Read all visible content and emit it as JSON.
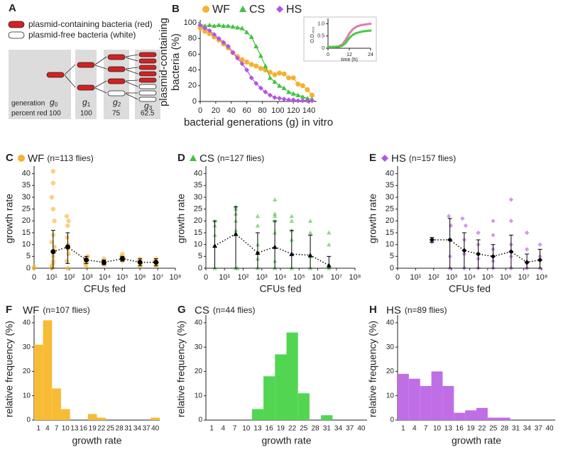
{
  "panel_a": {
    "label": "A",
    "legend": [
      "plasmid-containing bacteria (red)",
      "plasmid-free bacteria (white)"
    ],
    "row_labels": [
      "generation",
      "percent red"
    ],
    "generations": [
      {
        "symbol": "g",
        "sub": "0",
        "percent": 100
      },
      {
        "symbol": "g",
        "sub": "1",
        "percent": 100
      },
      {
        "symbol": "g",
        "sub": "2",
        "percent": 75
      },
      {
        "symbol": "g",
        "sub": "3",
        "percent": 62.5
      }
    ]
  },
  "chart_data": [
    {
      "type": "line",
      "label": "B",
      "markers": true,
      "xlabel": "bacterial generations (g) in vitro",
      "ylabel": [
        "plasmid-containing",
        "bacteria (%)"
      ],
      "xlim": [
        0,
        150
      ],
      "xticks": [
        0,
        20,
        40,
        60,
        80,
        100,
        120,
        140
      ],
      "ylim": [
        0,
        100
      ],
      "yticks": [
        0,
        20,
        40,
        60,
        80,
        100
      ],
      "x": [
        0,
        6,
        12,
        18,
        24,
        30,
        36,
        42,
        48,
        54,
        60,
        66,
        72,
        78,
        84,
        90,
        96,
        102,
        108,
        114,
        120,
        126,
        132,
        138,
        144
      ],
      "series": [
        {
          "name": "WF",
          "color": "#f6b12f",
          "marker": "circle",
          "values": [
            93,
            89,
            86,
            82,
            78,
            73,
            68,
            62,
            57,
            53,
            50,
            47,
            45,
            42,
            40,
            37,
            34,
            36,
            35,
            30,
            30,
            22,
            20,
            15,
            8
          ]
        },
        {
          "name": "CS",
          "color": "#3fc23f",
          "marker": "triangle",
          "values": [
            98,
            96,
            97,
            96,
            97,
            96,
            96,
            95,
            94,
            93,
            88,
            82,
            70,
            58,
            45,
            30,
            25,
            20,
            17,
            12,
            10,
            8,
            6,
            4,
            3
          ]
        },
        {
          "name": "HS",
          "color": "#b455e0",
          "marker": "diamond",
          "values": [
            97,
            93,
            90,
            85,
            80,
            75,
            70,
            62,
            55,
            48,
            40,
            30,
            23,
            17,
            12,
            8,
            5,
            4,
            3,
            2,
            2,
            1,
            1,
            1,
            1
          ]
        }
      ]
    },
    {
      "type": "line",
      "xlabel": "time (h)",
      "ylabel": "O.D.₆₀₀",
      "xlim": [
        0,
        24
      ],
      "xticks": [
        0,
        12,
        24
      ],
      "ylim": [
        0,
        1.1
      ],
      "yticks": [
        0,
        0.5,
        {
          "value": 1,
          "label": "1.0"
        }
      ],
      "x": [
        0,
        2,
        4,
        6,
        8,
        10,
        12,
        14,
        16,
        18,
        20,
        22,
        24
      ],
      "series": [
        {
          "color": "#e07ab0",
          "values": [
            0.05,
            0.05,
            0.06,
            0.08,
            0.15,
            0.35,
            0.6,
            0.78,
            0.88,
            0.93,
            0.96,
            0.98,
            1.0
          ]
        },
        {
          "color": "#44cc44",
          "values": [
            0.05,
            0.05,
            0.05,
            0.06,
            0.1,
            0.22,
            0.42,
            0.55,
            0.62,
            0.66,
            0.69,
            0.71,
            0.72
          ]
        }
      ]
    },
    {
      "type": "scatter",
      "label": "C",
      "note": "(n=113 flies)",
      "xlabel": "CFUs fed",
      "ylabel": "growth rate",
      "log_x": true,
      "xlim": [
        1,
        100000000
      ],
      "xticks": [
        {
          "value": 1,
          "label": "0"
        },
        {
          "value": 10,
          "label": "10¹"
        },
        {
          "value": 100,
          "label": "10²"
        },
        {
          "value": 1000,
          "label": "10³"
        },
        {
          "value": 10000,
          "label": "10⁴"
        },
        {
          "value": 100000,
          "label": "10⁵"
        },
        {
          "value": 1000000,
          "label": "10⁶"
        },
        {
          "value": 10000000,
          "label": "10⁷"
        },
        {
          "value": 100000000,
          "label": "10⁸"
        }
      ],
      "ylim": [
        0,
        42
      ],
      "yticks": [
        0,
        5,
        10,
        15,
        20,
        25,
        30,
        35,
        40
      ],
      "series": [
        {
          "name": "WF",
          "color": "#f6b12f",
          "marker": "circle",
          "x": [
            1,
            1,
            10,
            10,
            12,
            12,
            12,
            14,
            14,
            10,
            12,
            14,
            12,
            10,
            12,
            12,
            80,
            70,
            90,
            80,
            85,
            75,
            80,
            90,
            70,
            900,
            800,
            1000,
            900,
            1100,
            9000,
            10000,
            8000,
            9000,
            100000,
            120000,
            90000,
            100000,
            1000000,
            1100000,
            900000,
            1000000,
            8000000,
            9000000,
            7000000,
            8000000
          ],
          "values": [
            0,
            0.5,
            0,
            1,
            2,
            3,
            5,
            7,
            9,
            11,
            14,
            20,
            25,
            30,
            36,
            41,
            0,
            3,
            6,
            8,
            10,
            13,
            18,
            20,
            22,
            1,
            2,
            3,
            4,
            5,
            1.5,
            2,
            3,
            4,
            3,
            4,
            5,
            6,
            1,
            2,
            3,
            4,
            1,
            2,
            3,
            4
          ]
        },
        {
          "color": "#000000",
          "marker": "circle",
          "line": "dotted",
          "x": [
            12,
            80,
            900,
            9000,
            100000,
            1000000,
            8000000
          ],
          "values": [
            7,
            9,
            3.5,
            2.5,
            4,
            2.5,
            2.5
          ],
          "lower": [
            0,
            2,
            2,
            1.5,
            3,
            1,
            1
          ],
          "upper": [
            16,
            15,
            5,
            3.5,
            5,
            4,
            4
          ]
        }
      ]
    },
    {
      "type": "scatter",
      "label": "D",
      "note": "(n=127 flies)",
      "xlabel": "CFUs fed",
      "ylabel": "growth rate",
      "log_x": true,
      "xlim": [
        1,
        100000000
      ],
      "xticks": [
        {
          "value": 1,
          "label": "0"
        },
        {
          "value": 10,
          "label": "10¹"
        },
        {
          "value": 100,
          "label": "10²"
        },
        {
          "value": 1000,
          "label": "10³"
        },
        {
          "value": 10000,
          "label": "10⁴"
        },
        {
          "value": 100000,
          "label": "10⁵"
        },
        {
          "value": 1000000,
          "label": "10⁶"
        },
        {
          "value": 10000000,
          "label": "10⁷"
        },
        {
          "value": 100000000,
          "label": "10⁸"
        }
      ],
      "ylim": [
        0,
        42
      ],
      "yticks": [
        0,
        5,
        10,
        15,
        20,
        25,
        30,
        35,
        40
      ],
      "series": [
        {
          "name": "CS",
          "color": "#3fc23f",
          "marker": "triangle",
          "x": [
            3,
            3,
            3,
            3,
            40,
            40,
            40,
            40,
            40,
            40,
            50,
            600,
            600,
            600,
            600,
            600,
            5000,
            5000,
            5000,
            5000,
            5000,
            5000,
            5000,
            40000,
            40000,
            40000,
            40000,
            40000,
            400000,
            400000,
            400000,
            400000,
            4000000,
            4000000,
            4000000
          ],
          "values": [
            0,
            14,
            18,
            20,
            0,
            16,
            20,
            23,
            25,
            26,
            0,
            0,
            4,
            10,
            18,
            22,
            0,
            3,
            15,
            20,
            22,
            23,
            29,
            0,
            12,
            16,
            20,
            22,
            0,
            5,
            15,
            20,
            0,
            10,
            15
          ]
        },
        {
          "color": "#000000",
          "marker": "triangle",
          "line": "dotted",
          "x": [
            3,
            40,
            600,
            5000,
            40000,
            400000,
            4000000
          ],
          "values": [
            9.5,
            14.5,
            6.5,
            9,
            6,
            5.5,
            1.2
          ],
          "lower": [
            0,
            0,
            0,
            0,
            0,
            0,
            0
          ],
          "upper": [
            20,
            26,
            15,
            20,
            16,
            14,
            5
          ]
        }
      ]
    },
    {
      "type": "scatter",
      "label": "E",
      "note": "(n=157 flies)",
      "xlabel": "CFUs fed",
      "ylabel": "growth rate",
      "log_x": true,
      "xlim": [
        1,
        100000000
      ],
      "xticks": [
        {
          "value": 1,
          "label": "0"
        },
        {
          "value": 10,
          "label": "10¹"
        },
        {
          "value": 100,
          "label": "10²"
        },
        {
          "value": 1000,
          "label": "10³"
        },
        {
          "value": 10000,
          "label": "10⁴"
        },
        {
          "value": 100000,
          "label": "10⁵"
        },
        {
          "value": 1000000,
          "label": "10⁶"
        },
        {
          "value": 10000000,
          "label": "10⁷"
        },
        {
          "value": 100000000,
          "label": "10⁸"
        }
      ],
      "ylim": [
        0,
        42
      ],
      "yticks": [
        0,
        5,
        10,
        15,
        20,
        25,
        30,
        35,
        40
      ],
      "series": [
        {
          "name": "HS",
          "color": "#b455e0",
          "marker": "diamond",
          "x": [
            80,
            90,
            800,
            800,
            800,
            900,
            700,
            5000,
            5000,
            5000,
            6000,
            4000,
            30000,
            30000,
            30000,
            30000,
            200000,
            200000,
            200000,
            200000,
            200000,
            2000000,
            2000000,
            2000000,
            2000000,
            2000000,
            15000000,
            15000000,
            15000000,
            15000000,
            80000000,
            80000000,
            80000000
          ],
          "values": [
            11,
            12,
            0,
            5,
            12,
            18,
            22,
            0,
            6,
            12,
            18,
            21,
            0,
            4,
            10,
            15,
            0,
            3,
            8,
            14,
            20,
            0,
            5,
            10,
            20,
            29,
            0,
            2,
            8,
            15,
            0,
            5,
            10
          ]
        },
        {
          "color": "#000000",
          "marker": "diamond",
          "line": "dotted",
          "x": [
            80,
            800,
            5000,
            30000,
            200000,
            2000000,
            15000000,
            80000000
          ],
          "values": [
            12,
            12,
            7.5,
            6,
            5,
            7,
            2.5,
            3.5
          ],
          "lower": [
            11,
            0,
            0,
            0,
            0,
            0,
            0,
            0
          ],
          "upper": [
            13,
            21,
            15,
            12,
            10,
            14,
            6,
            8
          ]
        }
      ]
    },
    {
      "type": "bar",
      "label": "F",
      "name": "WF",
      "note": "(n=107 flies)",
      "color": "#f8bb35",
      "xlabel": "growth rate",
      "ylabel": "relative frequency (%)",
      "categories": [
        1,
        4,
        7,
        10,
        13,
        16,
        19,
        22,
        25,
        28,
        31,
        34,
        37,
        40
      ],
      "values": [
        31,
        41,
        13,
        4.5,
        0,
        0,
        2.5,
        1,
        0,
        0,
        0,
        0,
        0,
        1
      ],
      "ylim": [
        0,
        42
      ],
      "yticks": [
        0,
        10,
        20,
        30,
        40
      ]
    },
    {
      "type": "bar",
      "label": "G",
      "name": "CS",
      "note": "(n=44 flies)",
      "color": "#52d652",
      "xlabel": "growth rate",
      "ylabel": "relative frequency (%)",
      "categories": [
        1,
        4,
        7,
        10,
        13,
        16,
        19,
        22,
        25,
        28,
        31,
        34,
        37,
        40
      ],
      "values": [
        0,
        0,
        0,
        0,
        4.5,
        18,
        27,
        36,
        11,
        0,
        2,
        0,
        0,
        0
      ],
      "ylim": [
        0,
        42
      ],
      "yticks": [
        0,
        10,
        20,
        30,
        40
      ]
    },
    {
      "type": "bar",
      "label": "H",
      "name": "HS",
      "note": "(n=89 flies)",
      "color": "#c06ee6",
      "xlabel": "growth rate",
      "ylabel": "relative frequency (%)",
      "categories": [
        1,
        4,
        7,
        10,
        13,
        16,
        19,
        22,
        25,
        28,
        31,
        34,
        37,
        40
      ],
      "values": [
        19,
        17,
        14,
        20,
        14,
        3,
        4,
        5,
        1,
        1,
        0,
        0,
        0,
        0
      ],
      "ylim": [
        0,
        42
      ],
      "yticks": [
        0,
        10,
        20,
        30,
        40
      ]
    }
  ]
}
